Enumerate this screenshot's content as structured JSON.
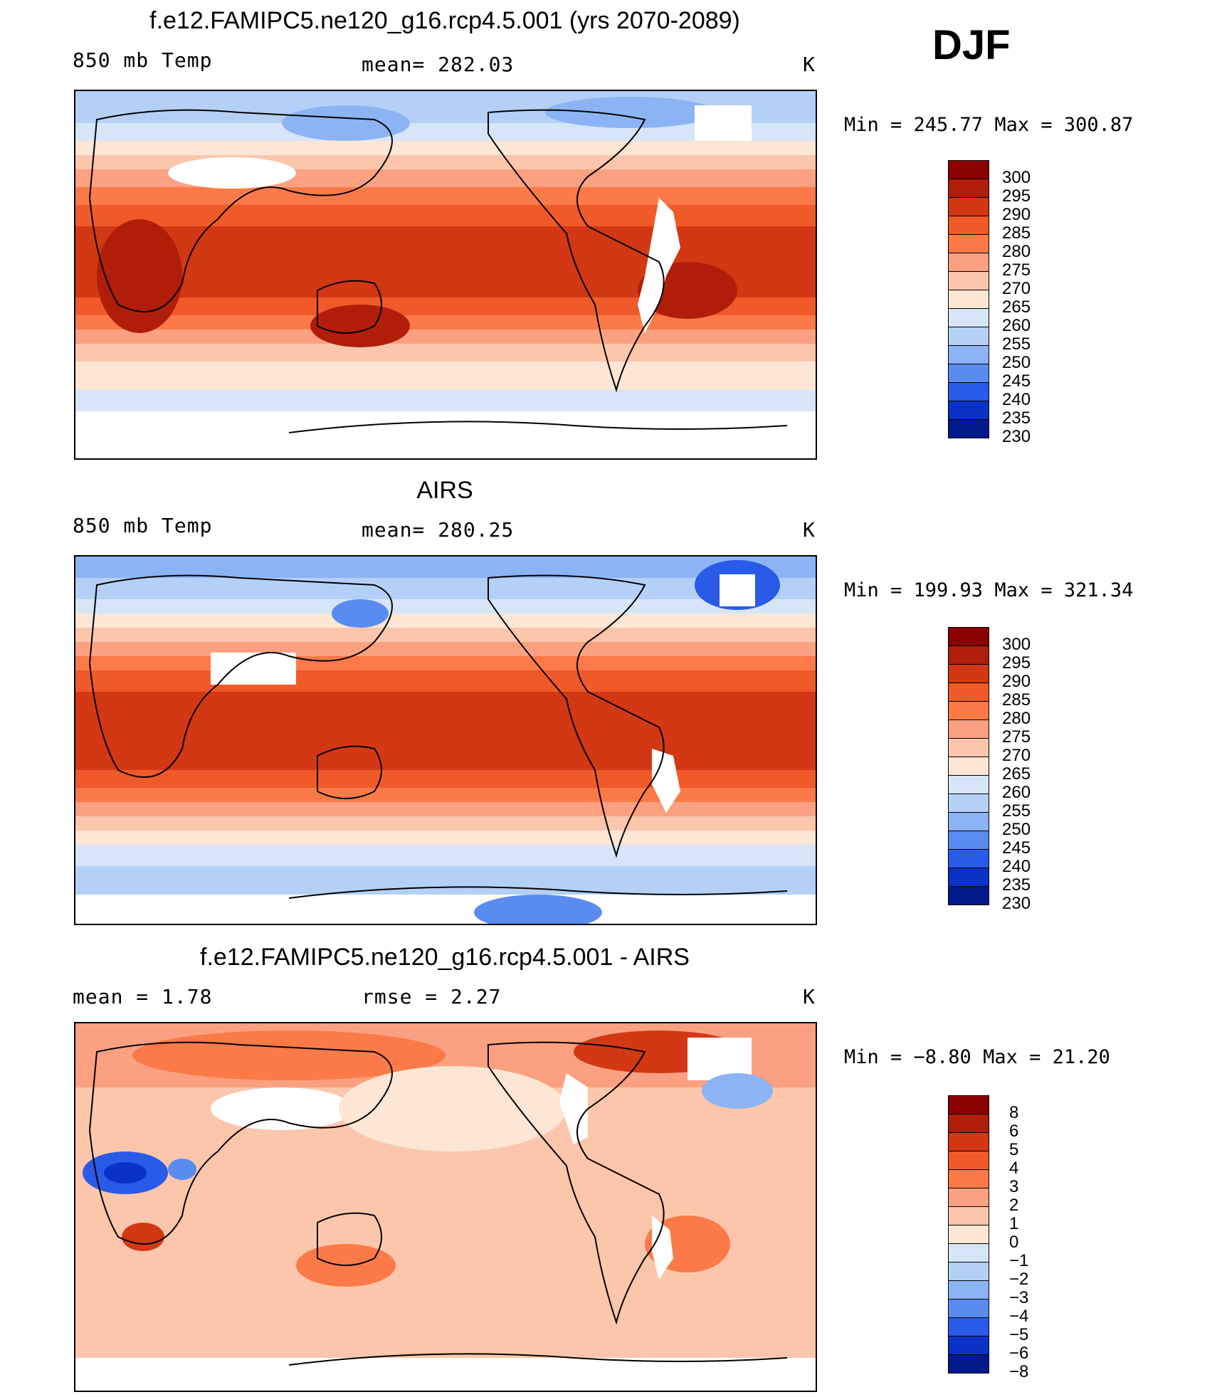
{
  "season": "DJF",
  "panels": [
    {
      "title": "f.e12.FAMIPC5.ne120_g16.rcp4.5.001 (yrs 2070-2089)",
      "left_label": "850 mb Temp",
      "center_label": "mean= 282.03",
      "units": "K",
      "minmax": "Min = 245.77 Max = 300.87",
      "colorbar_labels": [
        "300",
        "295",
        "290",
        "285",
        "280",
        "275",
        "270",
        "265",
        "260",
        "255",
        "250",
        "245",
        "240",
        "235",
        "230"
      ],
      "colorbar_colors": [
        "#8b0000",
        "#b01e0a",
        "#d23814",
        "#f05a28",
        "#fc7a48",
        "#fca082",
        "#fcc6ac",
        "#fee6d4",
        "#d6e6f8",
        "#b4d0f6",
        "#8cb4f4",
        "#5a8cf0",
        "#2a5ae8",
        "#0a32c8",
        "#001a8c"
      ]
    },
    {
      "title": "AIRS",
      "left_label": "850 mb Temp",
      "center_label": "mean= 280.25",
      "units": "K",
      "minmax": "Min = 199.93 Max = 321.34",
      "colorbar_labels": [
        "300",
        "295",
        "290",
        "285",
        "280",
        "275",
        "270",
        "265",
        "260",
        "255",
        "250",
        "245",
        "240",
        "235",
        "230"
      ],
      "colorbar_colors": [
        "#8b0000",
        "#b01e0a",
        "#d23814",
        "#f05a28",
        "#fc7a48",
        "#fca082",
        "#fcc6ac",
        "#fee6d4",
        "#d6e6f8",
        "#b4d0f6",
        "#8cb4f4",
        "#5a8cf0",
        "#2a5ae8",
        "#0a32c8",
        "#001a8c"
      ]
    },
    {
      "title": "f.e12.FAMIPC5.ne120_g16.rcp4.5.001 - AIRS",
      "left_label": "mean =    1.78",
      "center_label": "rmse =    2.27",
      "units": "K",
      "minmax": "Min =  −8.80 Max =  21.20",
      "colorbar_labels": [
        "8",
        "6",
        "5",
        "4",
        "3",
        "2",
        "1",
        "0",
        "−1",
        "−2",
        "−3",
        "−4",
        "−5",
        "−6",
        "−8"
      ],
      "colorbar_colors": [
        "#8b0000",
        "#b01e0a",
        "#d23814",
        "#f05a28",
        "#fc7a48",
        "#fca082",
        "#fcc6ac",
        "#fee6d4",
        "#d6e6f8",
        "#b4d0f6",
        "#8cb4f4",
        "#5a8cf0",
        "#2a5ae8",
        "#0a32c8",
        "#001a8c"
      ]
    }
  ]
}
